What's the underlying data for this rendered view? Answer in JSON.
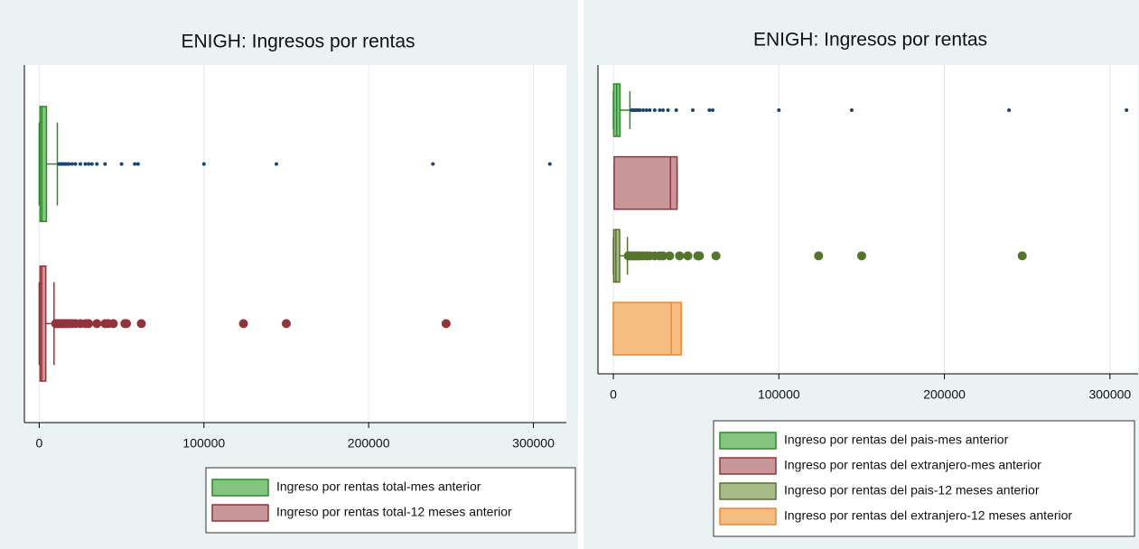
{
  "chart_data": [
    {
      "type": "box",
      "title": "ENIGH: Ingresos por rentas",
      "orientation": "horizontal",
      "xlim": [
        -9000,
        320000
      ],
      "xticks": [
        0,
        100000,
        200000,
        300000
      ],
      "grid": true,
      "series": [
        {
          "name": "Ingreso por rentas total-mes anterior",
          "color": "#84c57f",
          "edge": "#2d8a2d",
          "outlier_color": "#1a476f",
          "marker": "point",
          "min": 0,
          "q1": 500,
          "median": 1600,
          "q3": 4400,
          "max": 11000,
          "outliers": [
            12000,
            13000,
            14000,
            15000,
            16000,
            17000,
            18000,
            20000,
            22000,
            25000,
            28000,
            30000,
            32000,
            35000,
            40000,
            50000,
            58000,
            60000,
            100000,
            144000,
            239000,
            310000
          ]
        },
        {
          "name": "Ingreso por rentas total-12 meses anterior",
          "color": "#c9969a",
          "edge": "#90353b",
          "outlier_color": "#90353b",
          "marker": "circle",
          "min": 0,
          "q1": 500,
          "median": 1500,
          "q3": 4000,
          "max": 9000,
          "outliers": [
            10000,
            11000,
            12000,
            13000,
            14000,
            15000,
            16000,
            17000,
            18000,
            20000,
            22000,
            25000,
            28000,
            30000,
            35000,
            40000,
            42000,
            45000,
            52000,
            53000,
            62000,
            124000,
            150000,
            247000
          ]
        }
      ]
    },
    {
      "type": "box",
      "title": "ENIGH: Ingresos por rentas",
      "orientation": "horizontal",
      "xlim": [
        -9300,
        317000
      ],
      "xticks": [
        0,
        100000,
        200000,
        300000
      ],
      "grid": true,
      "series": [
        {
          "name": "Ingreso por rentas del pais-mes anterior",
          "color": "#84c57f",
          "edge": "#2d8a2d",
          "outlier_color": "#1a476f",
          "marker": "point",
          "min": 0,
          "q1": 200,
          "median": 2000,
          "q3": 4000,
          "max": 10000,
          "outliers": [
            11000,
            12000,
            13000,
            14000,
            15000,
            16000,
            18000,
            20000,
            22000,
            25000,
            28000,
            30000,
            33000,
            38000,
            48000,
            58000,
            60000,
            100000,
            144000,
            239000,
            310000
          ]
        },
        {
          "name": "Ingreso por rentas del extranjero-mes anterior",
          "color": "#c9969a",
          "edge": "#90353b",
          "outlier_color": "#90353b",
          "marker": "circle",
          "min": 500,
          "q1": 500,
          "median": 34500,
          "q3": 38500,
          "max": 38500,
          "outliers": []
        },
        {
          "name": "Ingreso por rentas del pais-12 meses anterior",
          "color": "#a9b98a",
          "edge": "#55752f",
          "outlier_color": "#55752f",
          "marker": "circle",
          "min": 0,
          "q1": 200,
          "median": 1500,
          "q3": 3800,
          "max": 8500,
          "outliers": [
            9000,
            10000,
            11000,
            12000,
            13000,
            14000,
            15000,
            16000,
            18000,
            20000,
            22000,
            25000,
            28000,
            30000,
            34000,
            40000,
            45000,
            51000,
            52000,
            62000,
            124000,
            150000,
            247000
          ]
        },
        {
          "name": "Ingreso por rentas del extranjero-12 meses anterior",
          "color": "#f5be80",
          "edge": "#e8883a",
          "outlier_color": "#e8883a",
          "marker": "circle",
          "min": 0,
          "q1": 0,
          "median": 35000,
          "q3": 41000,
          "max": 41000,
          "outliers": []
        }
      ]
    }
  ]
}
